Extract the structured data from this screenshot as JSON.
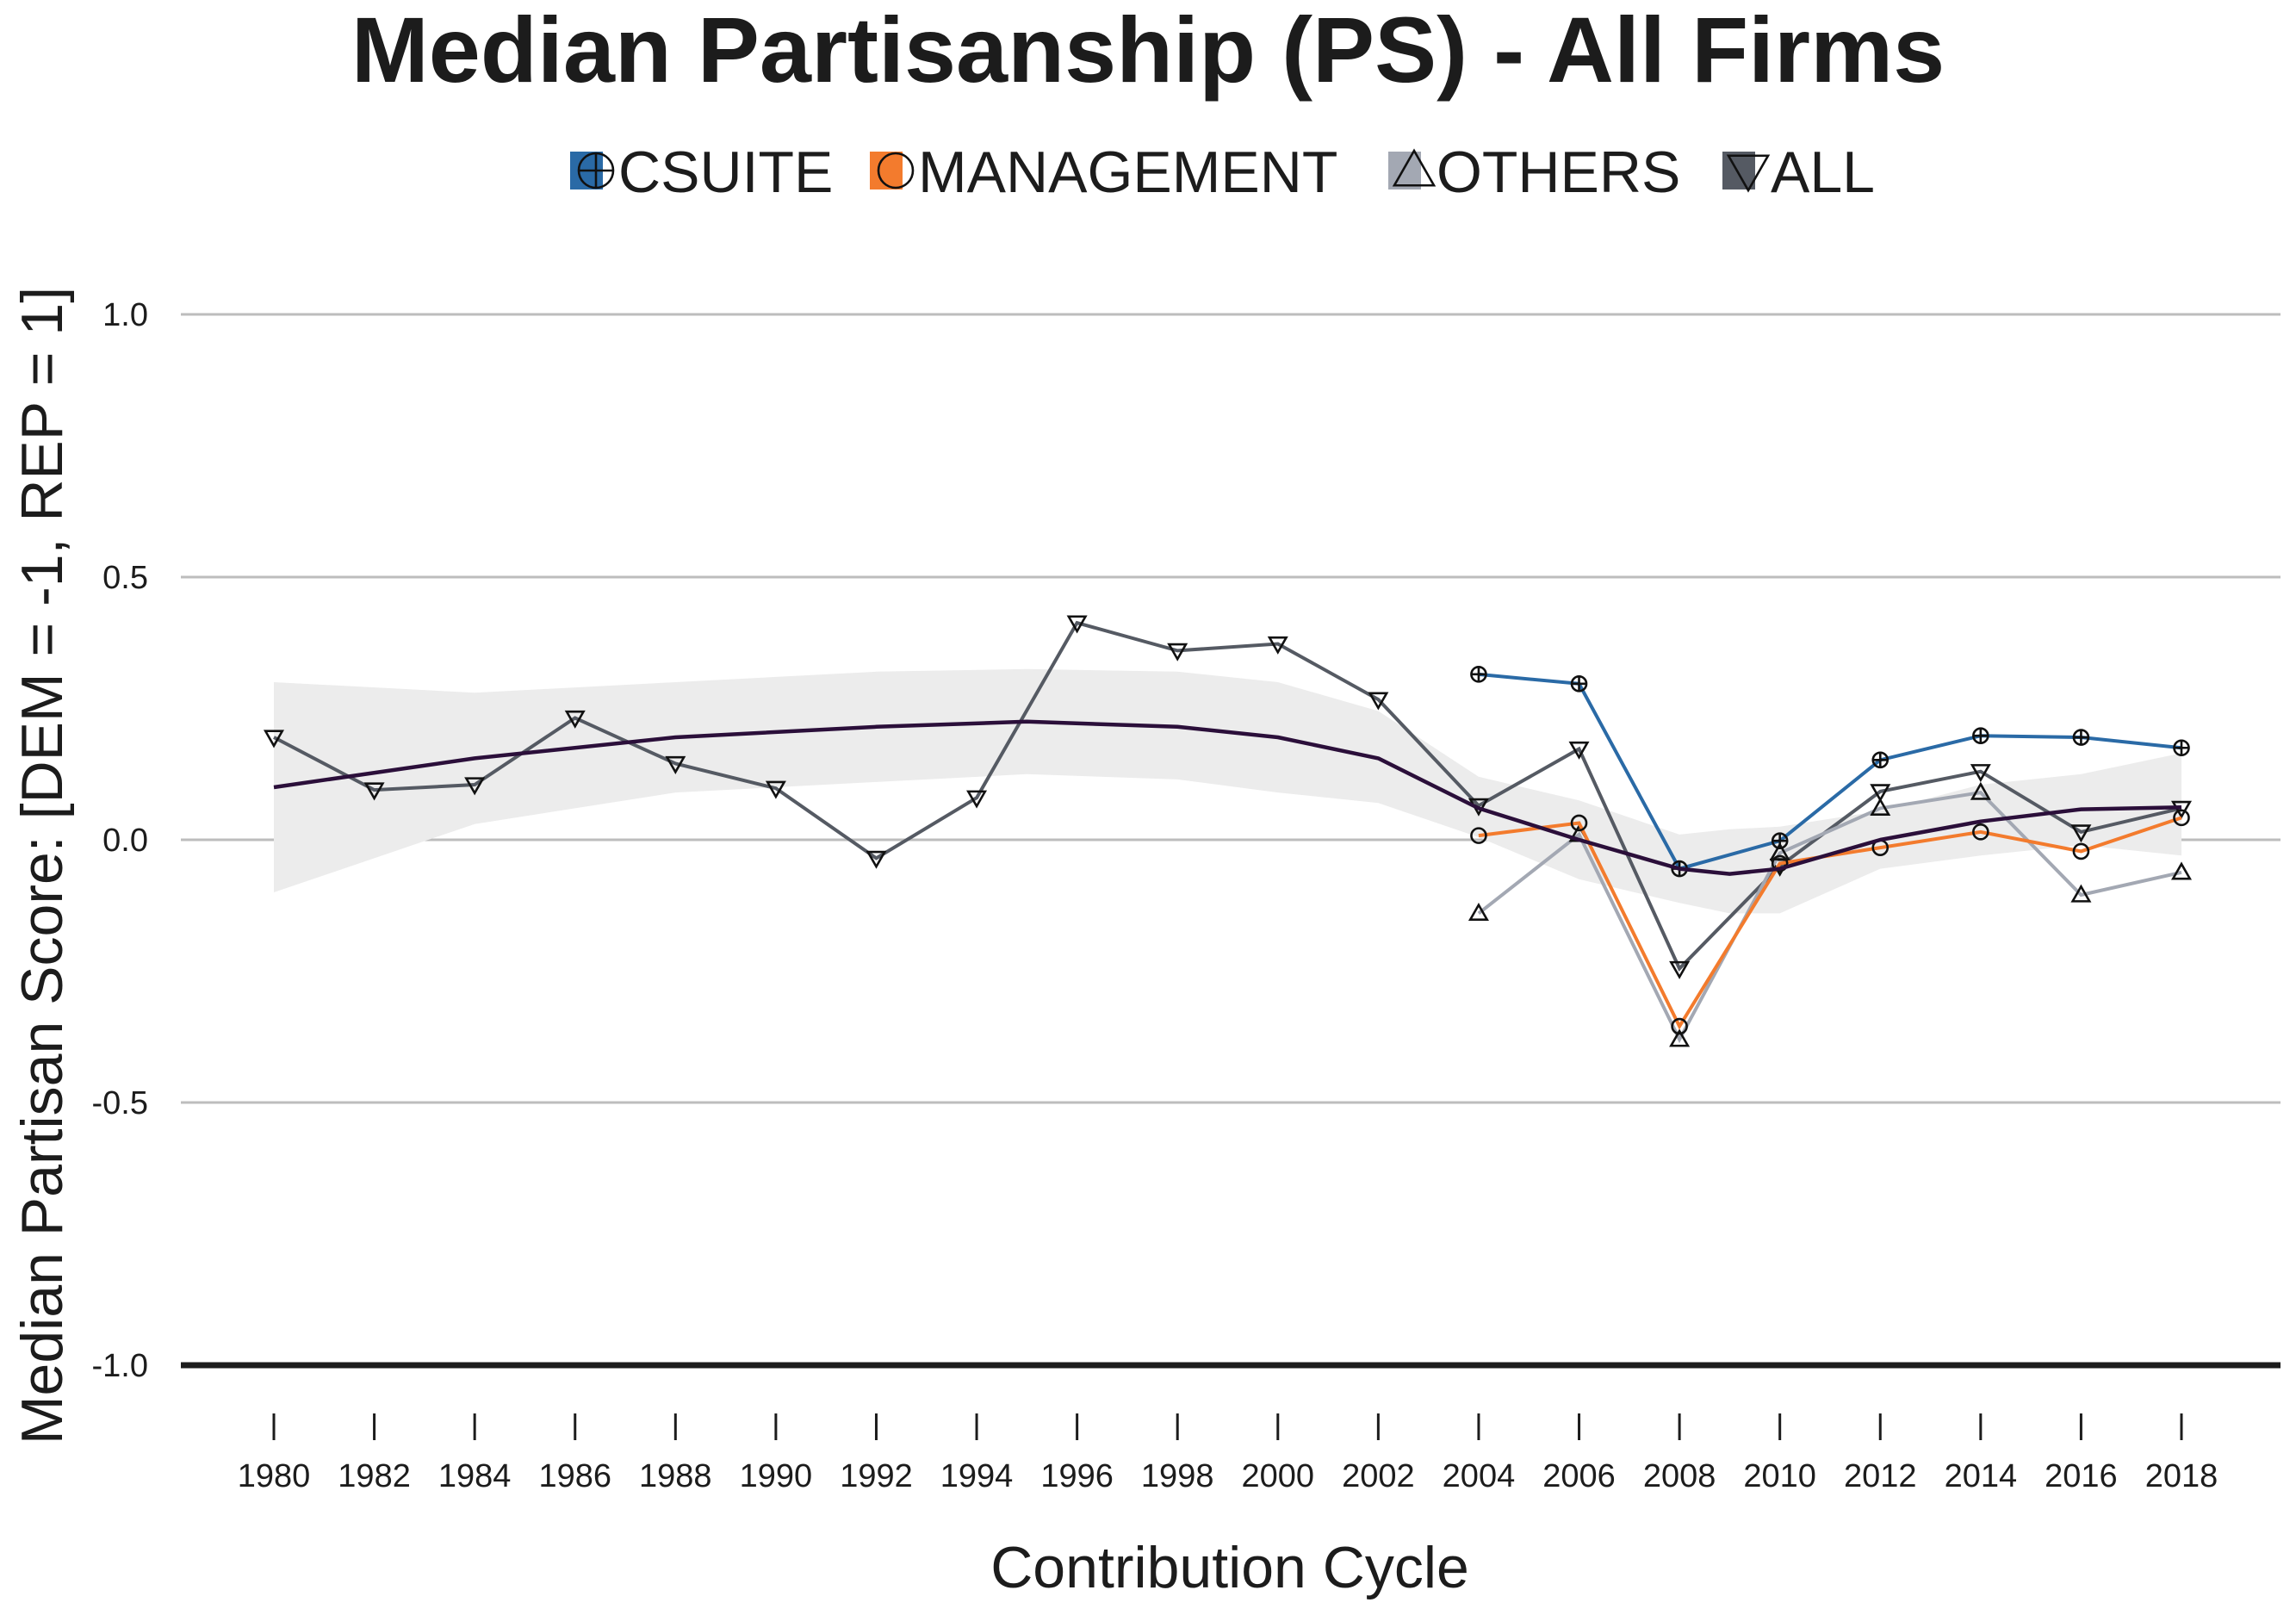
{
  "chart_data": {
    "type": "line",
    "title": "Median Partisanship (PS) - All Firms",
    "xlabel": "Contribution Cycle",
    "ylabel": "Median Partisan Score: [DEM = -1, REP = 1]",
    "ylim": [
      -1.0,
      1.0
    ],
    "xlim": [
      1980,
      2018
    ],
    "yticks": [
      1.0,
      0.5,
      0.0,
      -0.5,
      -1.0
    ],
    "ytick_labels": [
      "1.0",
      "0.5",
      "0.0",
      "-0.5",
      "-1.0"
    ],
    "x": [
      1980,
      1982,
      1984,
      1986,
      1988,
      1990,
      1992,
      1994,
      1996,
      1998,
      2000,
      2002,
      2004,
      2006,
      2008,
      2010,
      2012,
      2014,
      2016,
      2018
    ],
    "xtick_labels": [
      "1980",
      "1982",
      "1984",
      "1986",
      "1988",
      "1990",
      "1992",
      "1994",
      "1996",
      "1998",
      "2000",
      "2002",
      "2004",
      "2006",
      "2008",
      "2010",
      "2012",
      "2014",
      "2016",
      "2018"
    ],
    "grid": true,
    "legend_position": "top",
    "series": [
      {
        "name": "CSUITE",
        "color": "#2a6aa6",
        "marker": "circle-plus",
        "x": [
          2004,
          2006,
          2008,
          2010,
          2012,
          2014,
          2016,
          2018
        ],
        "values": [
          0.315,
          0.297,
          -0.055,
          -0.002,
          0.152,
          0.198,
          0.195,
          0.175
        ]
      },
      {
        "name": "MANAGEMENT",
        "color": "#f37b2d",
        "marker": "circle",
        "x": [
          2004,
          2006,
          2008,
          2010,
          2012,
          2014,
          2016,
          2018
        ],
        "values": [
          0.008,
          0.032,
          -0.355,
          -0.045,
          -0.015,
          0.015,
          -0.022,
          0.042
        ]
      },
      {
        "name": "OTHERS",
        "color": "#a3a8b3",
        "marker": "triangle-up",
        "x": [
          2004,
          2006,
          2008,
          2010,
          2012,
          2014,
          2016,
          2018
        ],
        "values": [
          -0.14,
          0.01,
          -0.38,
          -0.025,
          0.06,
          0.09,
          -0.105,
          -0.062
        ]
      },
      {
        "name": "ALL",
        "color": "#555a63",
        "marker": "triangle-down",
        "x": [
          1980,
          1982,
          1984,
          1986,
          1988,
          1990,
          1992,
          1994,
          1996,
          1998,
          2000,
          2002,
          2004,
          2006,
          2008,
          2010,
          2012,
          2014,
          2016,
          2018
        ],
        "values": [
          0.195,
          0.095,
          0.105,
          0.232,
          0.145,
          0.098,
          -0.035,
          0.08,
          0.413,
          0.36,
          0.373,
          0.267,
          0.065,
          0.173,
          -0.245,
          -0.05,
          0.092,
          0.13,
          0.015,
          0.06
        ]
      }
    ],
    "trend": {
      "color": "#2b0f3a",
      "band_color": "#ececec",
      "x": [
        1980,
        1984,
        1988,
        1992,
        1995,
        1998,
        2000,
        2002,
        2004,
        2006,
        2008,
        2009,
        2010,
        2012,
        2014,
        2016,
        2018
      ],
      "values": [
        0.1,
        0.155,
        0.195,
        0.215,
        0.225,
        0.215,
        0.195,
        0.155,
        0.06,
        0.0,
        -0.055,
        -0.065,
        -0.055,
        0.0,
        0.035,
        0.058,
        0.062
      ],
      "lower": [
        -0.1,
        0.03,
        0.09,
        0.11,
        0.125,
        0.115,
        0.09,
        0.07,
        0.005,
        -0.075,
        -0.12,
        -0.14,
        -0.14,
        -0.055,
        -0.03,
        -0.01,
        -0.03
      ],
      "upper": [
        0.3,
        0.28,
        0.3,
        0.32,
        0.325,
        0.32,
        0.3,
        0.245,
        0.12,
        0.075,
        0.01,
        0.02,
        0.025,
        0.055,
        0.105,
        0.125,
        0.165
      ]
    }
  }
}
